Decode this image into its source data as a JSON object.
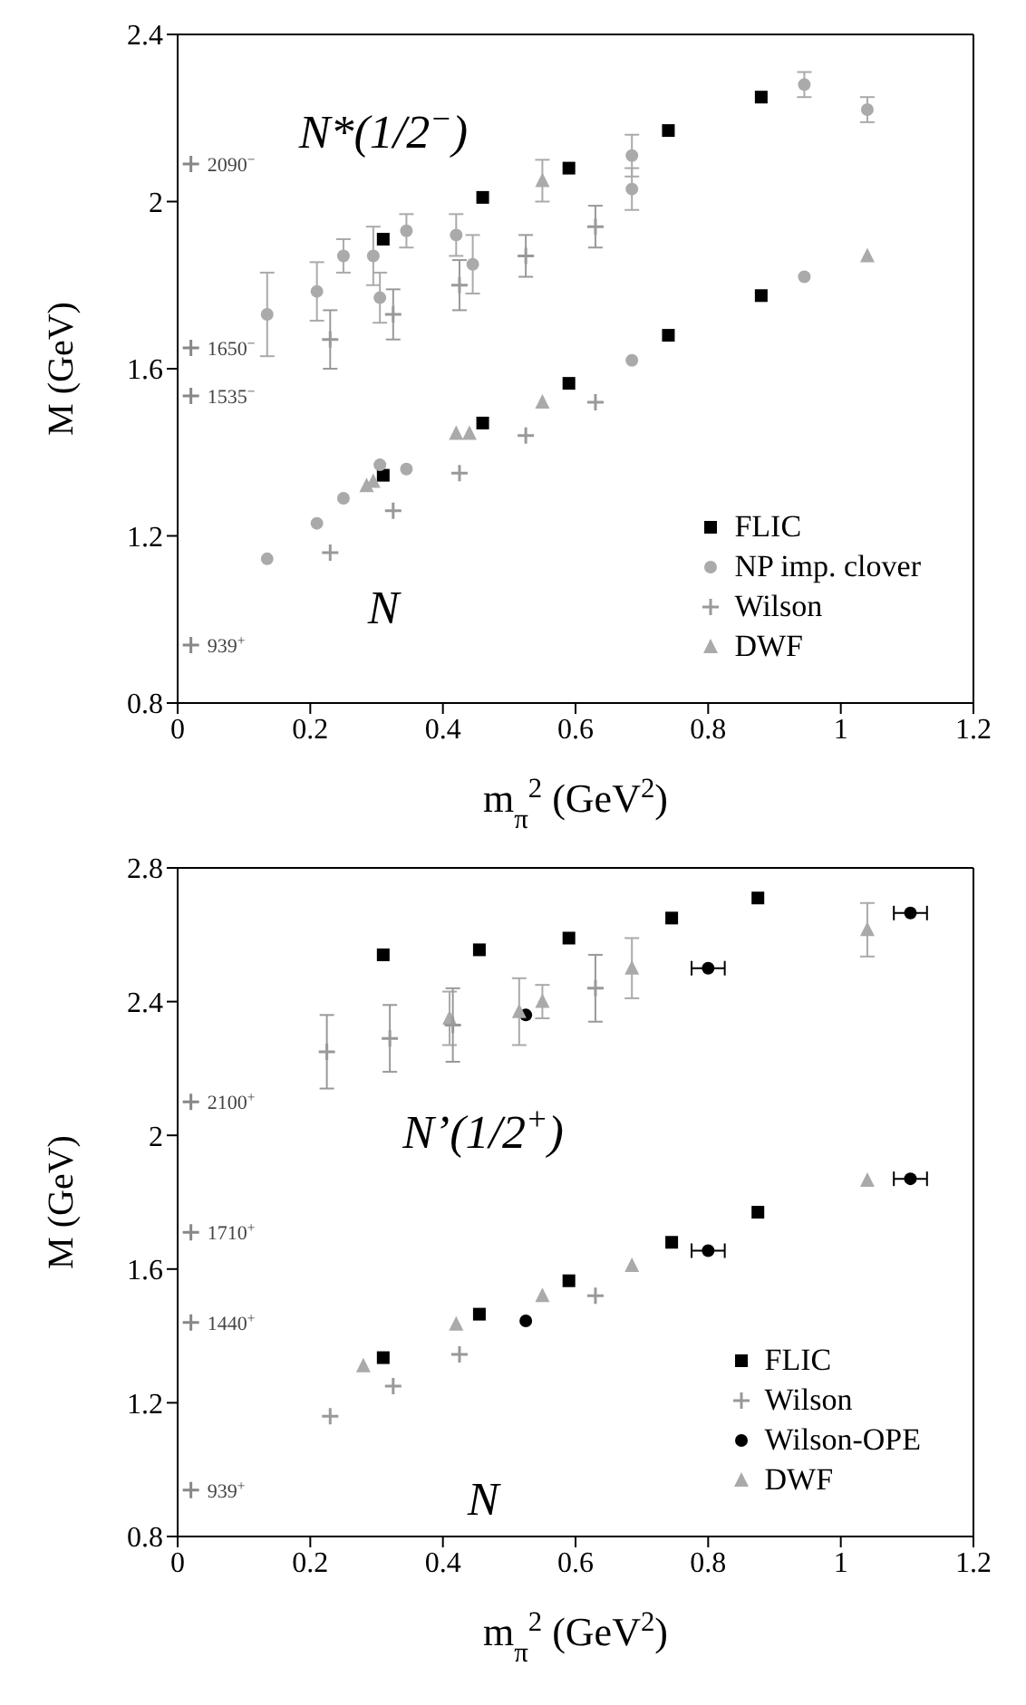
{
  "chart_data": [
    {
      "type": "scatter",
      "xlabel": "m$_{π}$$^{2}$ (GeV$^{2}$)",
      "ylabel": "M (GeV)",
      "xlim": [
        0,
        1.2
      ],
      "xticks": [
        0,
        0.2,
        0.4,
        0.6,
        0.8,
        1,
        1.2
      ],
      "ylim": [
        0.8,
        2.4
      ],
      "yticks": [
        0.8,
        1.2,
        1.6,
        2,
        2.4
      ],
      "grid": false,
      "legend": "bottom right",
      "annotations": [
        "N*(1/2$^{−}$)",
        "N",
        "2090$^{−}$",
        "1650$^{−}$",
        "1535$^{−}$",
        "939$^{+}$"
      ],
      "series": [
        {
          "name": "FLIC",
          "color": "#000000",
          "marker": "square",
          "x": [
            0.31,
            0.46,
            0.59,
            0.74,
            0.88,
            0.31,
            0.46,
            0.59,
            0.74,
            0.88
          ],
          "values": [
            1.91,
            2.01,
            2.08,
            2.17,
            2.25,
            1.345,
            1.47,
            1.565,
            1.68,
            1.775
          ]
        },
        {
          "name": "NP imp. clover",
          "color": "#aaaaaa",
          "marker": "circle",
          "x": [
            0.135,
            0.21,
            0.25,
            0.295,
            0.305,
            0.345,
            0.42,
            0.445,
            0.685,
            0.685,
            0.945,
            1.04,
            0.135,
            0.21,
            0.25,
            0.305,
            0.345,
            0.685,
            0.945
          ],
          "values": [
            1.73,
            1.785,
            1.87,
            1.87,
            1.77,
            1.93,
            1.92,
            1.85,
            2.11,
            2.03,
            2.28,
            2.22,
            1.145,
            1.23,
            1.29,
            1.37,
            1.36,
            1.62,
            1.82
          ],
          "errors": [
            0.1,
            0.07,
            0.04,
            0.07,
            0.06,
            0.04,
            0.05,
            0.07,
            0.05,
            0.05,
            0.03,
            0.03,
            null,
            null,
            null,
            null,
            null,
            null,
            null
          ]
        },
        {
          "name": "Wilson",
          "color": "#999999",
          "marker": "cross",
          "x": [
            0.23,
            0.325,
            0.425,
            0.525,
            0.63,
            0.23,
            0.325,
            0.425,
            0.525,
            0.63
          ],
          "values": [
            1.67,
            1.73,
            1.8,
            1.87,
            1.94,
            1.16,
            1.26,
            1.35,
            1.44,
            1.52
          ],
          "errors": [
            0.07,
            0.06,
            0.06,
            0.05,
            0.05,
            null,
            null,
            null,
            null,
            null
          ]
        },
        {
          "name": "DWF",
          "color": "#aaaaaa",
          "marker": "triangle",
          "x": [
            0.55,
            0.285,
            0.295,
            0.42,
            0.44,
            0.55,
            1.04
          ],
          "values": [
            2.05,
            1.32,
            1.33,
            1.445,
            1.445,
            1.52,
            1.87
          ],
          "errors": [
            0.05,
            null,
            null,
            null,
            null,
            null,
            null
          ]
        },
        {
          "color": "#888888",
          "marker": "cross",
          "x": [
            0.02,
            0.02,
            0.02,
            0.02
          ],
          "values": [
            2.09,
            1.65,
            1.535,
            0.939
          ]
        }
      ]
    },
    {
      "type": "scatter",
      "xlabel": "m$_{π}$$^{2}$ (GeV$^{2}$)",
      "ylabel": "M (GeV)",
      "xlim": [
        0,
        1.2
      ],
      "xticks": [
        0,
        0.2,
        0.4,
        0.6,
        0.8,
        1,
        1.2
      ],
      "ylim": [
        0.8,
        2.8
      ],
      "yticks": [
        0.8,
        1.2,
        1.6,
        2,
        2.4,
        2.8
      ],
      "grid": false,
      "legend": "bottom right",
      "annotations": [
        "N’(1/2$^{+}$)",
        "N",
        "2100$^{+}$",
        "1710$^{+}$",
        "1440$^{+}$",
        "939$^{+}$"
      ],
      "series": [
        {
          "name": "FLIC",
          "color": "#000000",
          "marker": "square",
          "x": [
            0.31,
            0.455,
            0.59,
            0.745,
            0.875,
            0.31,
            0.455,
            0.59,
            0.745,
            0.875
          ],
          "values": [
            2.54,
            2.555,
            2.59,
            2.65,
            2.71,
            1.335,
            1.465,
            1.565,
            1.68,
            1.77
          ]
        },
        {
          "name": "Wilson",
          "color": "#999999",
          "marker": "cross",
          "x": [
            0.225,
            0.32,
            0.415,
            0.63,
            0.23,
            0.325,
            0.425,
            0.63
          ],
          "values": [
            2.25,
            2.29,
            2.33,
            2.44,
            1.16,
            1.25,
            1.345,
            1.52
          ],
          "errors": [
            0.11,
            0.1,
            0.11,
            0.1,
            null,
            null,
            null,
            null
          ]
        },
        {
          "name": "Wilson-OPE",
          "color": "#000000",
          "marker": "circle",
          "x": [
            0.525,
            0.8,
            1.105,
            0.525,
            0.8,
            1.105
          ],
          "values": [
            2.36,
            2.5,
            2.665,
            1.445,
            1.655,
            1.87
          ],
          "xerrors": [
            null,
            0.025,
            0.025,
            null,
            0.025,
            0.025
          ]
        },
        {
          "name": "DWF",
          "color": "#aaaaaa",
          "marker": "triangle",
          "x": [
            0.41,
            0.515,
            0.55,
            0.685,
            1.04,
            0.28,
            0.42,
            0.55,
            0.685,
            1.04
          ],
          "values": [
            2.35,
            2.37,
            2.4,
            2.5,
            2.615,
            1.31,
            1.435,
            1.52,
            1.61,
            1.865
          ],
          "errors": [
            0.08,
            0.1,
            0.05,
            0.09,
            0.08,
            null,
            null,
            null,
            null,
            null
          ]
        },
        {
          "color": "#888888",
          "marker": "cross",
          "x": [
            0.02,
            0.02,
            0.02,
            0.02
          ],
          "values": [
            2.1,
            1.71,
            1.44,
            0.939
          ]
        }
      ]
    }
  ]
}
